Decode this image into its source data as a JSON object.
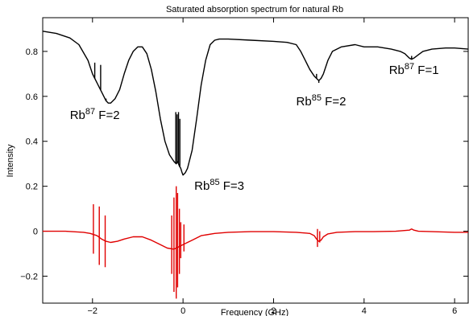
{
  "chart_data": {
    "type": "line",
    "title": "Saturated absorption spectrum for natural Rb",
    "xlabel": "Frequency (GHz)",
    "ylabel": "Intensity",
    "xlim": [
      -3.1,
      6.3
    ],
    "ylim": [
      -0.32,
      0.95
    ],
    "grid": false,
    "x_ticks": [
      -2,
      0,
      2,
      4,
      6
    ],
    "x_tick_labels": [
      "−2",
      "0",
      "2",
      "4",
      "6"
    ],
    "y_ticks": [
      -0.2,
      0,
      0.2,
      0.4,
      0.6,
      0.8
    ],
    "y_tick_labels": [
      "−0.2",
      "0",
      "0.2",
      "0.4",
      "0.6",
      "0.8"
    ],
    "series": [
      {
        "color": "#000000",
        "x": [
          -3.1,
          -2.8,
          -2.5,
          -2.3,
          -2.1,
          -2.0,
          -1.95,
          -1.9,
          -1.85,
          -1.8,
          -1.75,
          -1.7,
          -1.65,
          -1.6,
          -1.5,
          -1.4,
          -1.3,
          -1.2,
          -1.1,
          -1.0,
          -0.9,
          -0.8,
          -0.7,
          -0.6,
          -0.5,
          -0.4,
          -0.3,
          -0.2,
          -0.15,
          -0.12,
          -0.08,
          -0.05,
          -0.02,
          0.0,
          0.05,
          0.1,
          0.2,
          0.3,
          0.4,
          0.5,
          0.6,
          0.7,
          0.8,
          1.0,
          1.5,
          2.0,
          2.3,
          2.5,
          2.6,
          2.7,
          2.8,
          2.9,
          2.95,
          3.0,
          3.05,
          3.1,
          3.2,
          3.3,
          3.5,
          3.8,
          4.0,
          4.3,
          4.6,
          4.8,
          4.9,
          5.0,
          5.05,
          5.1,
          5.2,
          5.3,
          5.5,
          5.8,
          6.0,
          6.3
        ],
        "values": [
          0.89,
          0.88,
          0.86,
          0.83,
          0.76,
          0.7,
          0.68,
          0.66,
          0.64,
          0.62,
          0.6,
          0.58,
          0.57,
          0.57,
          0.59,
          0.63,
          0.7,
          0.76,
          0.8,
          0.82,
          0.82,
          0.79,
          0.72,
          0.62,
          0.5,
          0.4,
          0.34,
          0.31,
          0.3,
          0.31,
          0.29,
          0.28,
          0.26,
          0.25,
          0.26,
          0.28,
          0.36,
          0.5,
          0.65,
          0.76,
          0.83,
          0.85,
          0.855,
          0.855,
          0.85,
          0.845,
          0.84,
          0.83,
          0.8,
          0.76,
          0.72,
          0.69,
          0.68,
          0.67,
          0.68,
          0.7,
          0.76,
          0.8,
          0.82,
          0.83,
          0.82,
          0.82,
          0.81,
          0.8,
          0.79,
          0.77,
          0.765,
          0.77,
          0.785,
          0.8,
          0.81,
          0.815,
          0.815,
          0.81
        ],
        "spikes": [
          {
            "x": -1.95,
            "to": 0.75
          },
          {
            "x": -1.82,
            "to": 0.74
          },
          {
            "x": -1.7,
            "to": 0.59
          },
          {
            "x": -0.16,
            "to": 0.53
          },
          {
            "x": -0.13,
            "to": 0.52
          },
          {
            "x": -0.1,
            "to": 0.53
          },
          {
            "x": -0.07,
            "to": 0.5
          },
          {
            "x": 2.95,
            "to": 0.7
          },
          {
            "x": 3.0,
            "to": 0.66
          },
          {
            "x": 5.05,
            "to": 0.78
          }
        ]
      },
      {
        "color": "#e00000",
        "x": [
          -3.1,
          -2.6,
          -2.2,
          -2.05,
          -1.9,
          -1.8,
          -1.7,
          -1.6,
          -1.45,
          -1.3,
          -1.1,
          -0.9,
          -0.7,
          -0.5,
          -0.35,
          -0.2,
          -0.1,
          0.0,
          0.05,
          0.1,
          0.2,
          0.4,
          0.7,
          1.0,
          1.5,
          2.0,
          2.5,
          2.8,
          2.9,
          2.95,
          3.0,
          3.05,
          3.1,
          3.2,
          3.4,
          3.8,
          4.2,
          4.7,
          5.0,
          5.05,
          5.1,
          5.2,
          5.5,
          6.0,
          6.3
        ],
        "values": [
          0.0,
          0.0,
          -0.005,
          -0.01,
          -0.02,
          -0.035,
          -0.045,
          -0.05,
          -0.045,
          -0.035,
          -0.025,
          -0.025,
          -0.04,
          -0.06,
          -0.075,
          -0.08,
          -0.07,
          -0.06,
          -0.055,
          -0.05,
          -0.04,
          -0.02,
          -0.01,
          -0.005,
          -0.002,
          -0.002,
          -0.005,
          -0.01,
          -0.02,
          -0.035,
          -0.045,
          -0.04,
          -0.025,
          -0.012,
          -0.005,
          -0.002,
          -0.002,
          0.0,
          0.005,
          0.01,
          0.005,
          0.0,
          -0.002,
          -0.005,
          -0.005
        ],
        "spikes": [
          {
            "x": -1.98,
            "from": 0.12,
            "to": -0.1
          },
          {
            "x": -1.85,
            "from": 0.11,
            "to": -0.15
          },
          {
            "x": -1.72,
            "from": 0.07,
            "to": -0.16
          },
          {
            "x": -0.25,
            "from": 0.07,
            "to": -0.19
          },
          {
            "x": -0.2,
            "from": 0.15,
            "to": -0.27
          },
          {
            "x": -0.15,
            "from": 0.2,
            "to": -0.3
          },
          {
            "x": -0.12,
            "from": 0.17,
            "to": -0.25
          },
          {
            "x": -0.08,
            "from": 0.1,
            "to": -0.19
          },
          {
            "x": -0.05,
            "from": 0.04,
            "to": -0.12
          },
          {
            "x": 0.02,
            "from": 0.03,
            "to": -0.09
          },
          {
            "x": 2.97,
            "from": 0.01,
            "to": -0.07
          },
          {
            "x": 3.02,
            "from": 0.0,
            "to": -0.05
          }
        ]
      }
    ],
    "annotations": [
      {
        "base": "Rb",
        "sup": "87",
        "tail": " F=2",
        "x": -2.5,
        "y": 0.5
      },
      {
        "base": "Rb",
        "sup": "85",
        "tail": " F=3",
        "x": 0.25,
        "y": 0.185
      },
      {
        "base": "Rb",
        "sup": "85",
        "tail": " F=2",
        "x": 2.5,
        "y": 0.56
      },
      {
        "base": "Rb",
        "sup": "87",
        "tail": " F=1",
        "x": 4.55,
        "y": 0.7
      }
    ]
  }
}
